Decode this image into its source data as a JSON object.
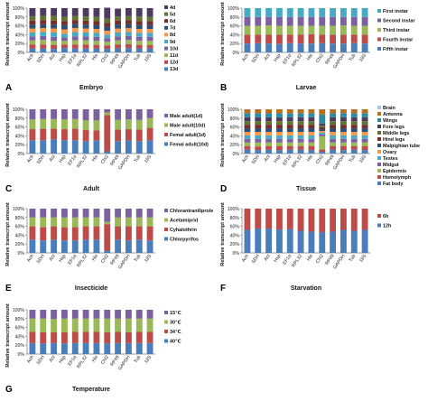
{
  "figure": {
    "genes": [
      "Ach",
      "SDH",
      "Act",
      "Hsp",
      "EF1α",
      "RPL32",
      "His",
      "Chi2",
      "RP49",
      "GAPDH",
      "Tub",
      "18S"
    ],
    "yticks": [
      "0%",
      "20%",
      "40%",
      "60%",
      "80%",
      "100%"
    ]
  },
  "chart_data": [
    {
      "type": "bar",
      "panel_letter": "A",
      "xlabel": "Embryo",
      "ylabel": "Relative transcript amount",
      "legend_position": "right",
      "categories": [
        "Ach",
        "SDH",
        "Act",
        "Hsp",
        "EF1α",
        "RPL32",
        "His",
        "Chi2",
        "RP49",
        "GAPDH",
        "Tub",
        "18S"
      ],
      "ylim": [
        0,
        100
      ],
      "series": [
        {
          "name": "13d",
          "color": "#4a7ebb",
          "values": [
            9,
            9,
            8,
            10,
            9,
            9,
            9,
            8,
            9,
            10,
            9,
            9
          ]
        },
        {
          "name": "12d",
          "color": "#be4b48",
          "values": [
            9,
            9,
            9,
            8,
            9,
            9,
            8,
            8,
            9,
            9,
            8,
            8
          ]
        },
        {
          "name": "11d",
          "color": "#98b954",
          "values": [
            9,
            10,
            9,
            8,
            9,
            9,
            9,
            8,
            9,
            9,
            9,
            9
          ]
        },
        {
          "name": "10d",
          "color": "#7d60a0",
          "values": [
            9,
            9,
            9,
            8,
            9,
            9,
            9,
            8,
            9,
            9,
            9,
            9
          ]
        },
        {
          "name": "9d",
          "color": "#46aac5",
          "values": [
            9,
            9,
            10,
            8,
            10,
            9,
            9,
            8,
            9,
            9,
            9,
            9
          ]
        },
        {
          "name": "8d",
          "color": "#f79646",
          "values": [
            9,
            9,
            9,
            10,
            9,
            9,
            9,
            9,
            9,
            9,
            9,
            9
          ]
        },
        {
          "name": "7d",
          "color": "#2c4d75",
          "values": [
            9,
            9,
            9,
            10,
            9,
            9,
            9,
            9,
            9,
            9,
            9,
            9
          ]
        },
        {
          "name": "6d",
          "color": "#772c2a",
          "values": [
            9,
            9,
            9,
            9,
            9,
            9,
            9,
            9,
            9,
            9,
            9,
            9
          ]
        },
        {
          "name": "5d",
          "color": "#5f7530",
          "values": [
            9,
            9,
            10,
            9,
            9,
            9,
            9,
            9,
            9,
            9,
            10,
            9
          ]
        },
        {
          "name": "4d",
          "color": "#4d3b62",
          "values": [
            19,
            18,
            18,
            20,
            18,
            19,
            20,
            25,
            18,
            18,
            19,
            20
          ]
        }
      ]
    },
    {
      "type": "bar",
      "panel_letter": "B",
      "xlabel": "Larvae",
      "ylabel": "Relative transcript amount",
      "legend_position": "right",
      "categories": [
        "Ach",
        "SDH",
        "Act",
        "Hsp",
        "EF1α",
        "RPL32",
        "His",
        "Chi2",
        "RP49",
        "GAPDH",
        "Tub",
        "18S"
      ],
      "ylim": [
        0,
        100
      ],
      "series": [
        {
          "name": "Fifth instar",
          "color": "#4a7ebb",
          "values": [
            20,
            21,
            20,
            19,
            21,
            20,
            20,
            21,
            20,
            20,
            21,
            20
          ]
        },
        {
          "name": "Fourth instar",
          "color": "#be4b48",
          "values": [
            20,
            19,
            20,
            21,
            19,
            20,
            21,
            19,
            20,
            20,
            19,
            20
          ]
        },
        {
          "name": "Third instar",
          "color": "#98b954",
          "values": [
            20,
            20,
            21,
            20,
            20,
            20,
            19,
            20,
            20,
            21,
            20,
            20
          ]
        },
        {
          "name": "Second instar",
          "color": "#7d60a0",
          "values": [
            20,
            20,
            19,
            20,
            20,
            20,
            20,
            20,
            20,
            19,
            20,
            20
          ]
        },
        {
          "name": "First instar",
          "color": "#46aac5",
          "values": [
            20,
            20,
            20,
            20,
            20,
            20,
            20,
            20,
            20,
            20,
            20,
            20
          ]
        }
      ]
    },
    {
      "type": "bar",
      "panel_letter": "C",
      "xlabel": "Adult",
      "ylabel": "Relative transcript amount",
      "legend_position": "right",
      "categories": [
        "Ach",
        "SDH",
        "Act",
        "Hsp",
        "EF1α",
        "RPL32",
        "His",
        "Chi2",
        "RP49",
        "GAPDH",
        "Tub",
        "18S"
      ],
      "ylim": [
        0,
        100
      ],
      "series": [
        {
          "name": "Femal adult(10d)",
          "color": "#4a7ebb",
          "values": [
            30,
            30,
            32,
            30,
            30,
            28,
            30,
            5,
            28,
            30,
            28,
            30
          ]
        },
        {
          "name": "Femal adult(1d)",
          "color": "#be4b48",
          "values": [
            25,
            26,
            24,
            25,
            26,
            25,
            22,
            82,
            26,
            25,
            26,
            28
          ]
        },
        {
          "name": "Male adult(10d)",
          "color": "#98b954",
          "values": [
            22,
            22,
            22,
            22,
            22,
            22,
            23,
            6,
            22,
            22,
            22,
            22
          ]
        },
        {
          "name": "Male adult(1d)",
          "color": "#7d60a0",
          "values": [
            23,
            22,
            22,
            23,
            22,
            25,
            25,
            7,
            24,
            23,
            24,
            20
          ]
        }
      ]
    },
    {
      "type": "bar",
      "panel_letter": "D",
      "xlabel": "Tissue",
      "ylabel": "Relative transcript amount",
      "legend_position": "right",
      "categories": [
        "Ach",
        "SDH",
        "Act",
        "Hsp",
        "EF1α",
        "RPL32",
        "His",
        "Chi2",
        "RP49",
        "GAPDH",
        "Tub",
        "18S"
      ],
      "ylim": [
        0,
        100
      ],
      "series": [
        {
          "name": "Fat body",
          "color": "#4a7ebb",
          "values": [
            9,
            8,
            9,
            8,
            9,
            9,
            8,
            4,
            9,
            8,
            9,
            8
          ]
        },
        {
          "name": "Homolymph",
          "color": "#be4b48",
          "values": [
            8,
            8,
            8,
            9,
            8,
            8,
            9,
            5,
            8,
            9,
            8,
            9
          ]
        },
        {
          "name": "Epidermis",
          "color": "#98b954",
          "values": [
            8,
            9,
            8,
            8,
            8,
            8,
            8,
            30,
            8,
            8,
            8,
            8
          ]
        },
        {
          "name": "Midgut",
          "color": "#7d60a0",
          "values": [
            8,
            8,
            8,
            8,
            8,
            8,
            8,
            4,
            8,
            8,
            8,
            8
          ]
        },
        {
          "name": "Testes",
          "color": "#46aac5",
          "values": [
            8,
            8,
            8,
            8,
            8,
            8,
            8,
            4,
            8,
            8,
            8,
            8
          ]
        },
        {
          "name": "Ovary",
          "color": "#f79646",
          "values": [
            8,
            8,
            8,
            8,
            8,
            8,
            8,
            4,
            8,
            8,
            8,
            8
          ]
        },
        {
          "name": "Malpighian tube",
          "color": "#2c4d75",
          "values": [
            8,
            8,
            8,
            8,
            8,
            8,
            8,
            4,
            8,
            8,
            8,
            8
          ]
        },
        {
          "name": "Hind legs",
          "color": "#772c2a",
          "values": [
            8,
            8,
            8,
            8,
            8,
            8,
            8,
            4,
            8,
            8,
            8,
            8
          ]
        },
        {
          "name": "Middle legs",
          "color": "#5f7530",
          "values": [
            8,
            8,
            8,
            8,
            8,
            8,
            8,
            4,
            8,
            8,
            8,
            8
          ]
        },
        {
          "name": "Fore legs",
          "color": "#4d3b62",
          "values": [
            9,
            9,
            9,
            9,
            9,
            9,
            9,
            5,
            9,
            9,
            9,
            9
          ]
        },
        {
          "name": "Wings",
          "color": "#2a8ca3",
          "values": [
            9,
            9,
            9,
            9,
            9,
            9,
            9,
            20,
            9,
            9,
            9,
            9
          ]
        },
        {
          "name": "Antenna",
          "color": "#b96d1f",
          "values": [
            9,
            9,
            9,
            9,
            9,
            9,
            9,
            12,
            9,
            9,
            9,
            9
          ]
        },
        {
          "name": "Brain",
          "color": "#aac3e6",
          "values": [
            0,
            0,
            0,
            0,
            0,
            0,
            0,
            0,
            0,
            0,
            0,
            0
          ]
        }
      ]
    },
    {
      "type": "bar",
      "panel_letter": "E",
      "xlabel": "Insecticide",
      "ylabel": "Relative transcript amount",
      "legend_position": "right",
      "categories": [
        "Ach",
        "SDH",
        "Act",
        "Hsp",
        "EF1α",
        "RPL32",
        "His",
        "Chi2",
        "RP49",
        "GAPDH",
        "Tub",
        "18S"
      ],
      "ylim": [
        0,
        100
      ],
      "series": [
        {
          "name": "Chlorpyrifos",
          "color": "#4a7ebb",
          "values": [
            30,
            28,
            30,
            28,
            28,
            30,
            30,
            5,
            30,
            28,
            30,
            28
          ]
        },
        {
          "name": "Cyhalothrin",
          "color": "#be4b48",
          "values": [
            30,
            30,
            30,
            30,
            30,
            30,
            30,
            60,
            30,
            32,
            30,
            32
          ]
        },
        {
          "name": "Acetamiprid",
          "color": "#98b954",
          "values": [
            20,
            22,
            20,
            22,
            22,
            20,
            20,
            5,
            20,
            20,
            20,
            20
          ]
        },
        {
          "name": "Chlorantraniliprole",
          "color": "#7d60a0",
          "values": [
            20,
            20,
            20,
            20,
            20,
            20,
            20,
            30,
            20,
            20,
            20,
            20
          ]
        }
      ]
    },
    {
      "type": "bar",
      "panel_letter": "F",
      "xlabel": "Starvation",
      "ylabel": "Relative transcript amount",
      "legend_position": "right",
      "categories": [
        "Ach",
        "SDH",
        "Act",
        "Hsp",
        "EF1α",
        "RPL32",
        "His",
        "Chi2",
        "RP49",
        "GAPDH",
        "Tub",
        "18S"
      ],
      "ylim": [
        0,
        100
      ],
      "series": [
        {
          "name": "12h",
          "color": "#4a7ebb",
          "values": [
            52,
            55,
            55,
            53,
            54,
            50,
            48,
            47,
            48,
            52,
            50,
            52
          ]
        },
        {
          "name": "6h",
          "color": "#be4b48",
          "values": [
            48,
            45,
            45,
            47,
            46,
            50,
            52,
            53,
            52,
            48,
            50,
            48
          ]
        }
      ]
    },
    {
      "type": "bar",
      "panel_letter": "G",
      "xlabel": "Temperature",
      "ylabel": "Relative transcript amount",
      "legend_position": "right",
      "categories": [
        "Ach",
        "SDH",
        "Act",
        "Hsp",
        "EF1α",
        "RPL32",
        "His",
        "Chi2",
        "RP49",
        "GAPDH",
        "Tub",
        "18S"
      ],
      "ylim": [
        0,
        100
      ],
      "series": [
        {
          "name": "40℃",
          "color": "#4a7ebb",
          "values": [
            25,
            24,
            25,
            24,
            25,
            25,
            25,
            24,
            25,
            25,
            25,
            25
          ]
        },
        {
          "name": "34℃",
          "color": "#be4b48",
          "values": [
            25,
            25,
            24,
            25,
            25,
            25,
            25,
            25,
            25,
            24,
            25,
            25
          ]
        },
        {
          "name": "30℃",
          "color": "#98b954",
          "values": [
            30,
            31,
            30,
            31,
            30,
            30,
            30,
            31,
            30,
            31,
            30,
            30
          ]
        },
        {
          "name": "15℃",
          "color": "#7d60a0",
          "values": [
            20,
            20,
            21,
            20,
            20,
            20,
            20,
            20,
            20,
            20,
            20,
            20
          ]
        }
      ]
    }
  ]
}
